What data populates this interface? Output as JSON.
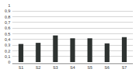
{
  "chart_data": {
    "type": "bar",
    "categories": [
      "S1",
      "S2",
      "S3",
      "S4",
      "S5",
      "S6",
      "S7"
    ],
    "values": [
      0.32,
      0.34,
      0.47,
      0.42,
      0.42,
      0.33,
      0.44
    ],
    "color": "#2e3331",
    "ylim": [
      0,
      1
    ],
    "yticks": [
      0,
      {
        "value": 0.1,
        "label": "0,1"
      },
      {
        "value": 0.2,
        "label": "0,2"
      },
      {
        "value": 0.3,
        "label": "0,3"
      },
      {
        "value": 0.4,
        "label": "0,4"
      },
      {
        "value": 0.5,
        "label": "0,5"
      },
      {
        "value": 0.6,
        "label": "0,6"
      },
      {
        "value": 0.7,
        "label": "0,7"
      },
      {
        "value": 0.8,
        "label": "0,8"
      },
      {
        "value": 0.9,
        "label": "0,9"
      },
      1
    ],
    "grid": true
  }
}
